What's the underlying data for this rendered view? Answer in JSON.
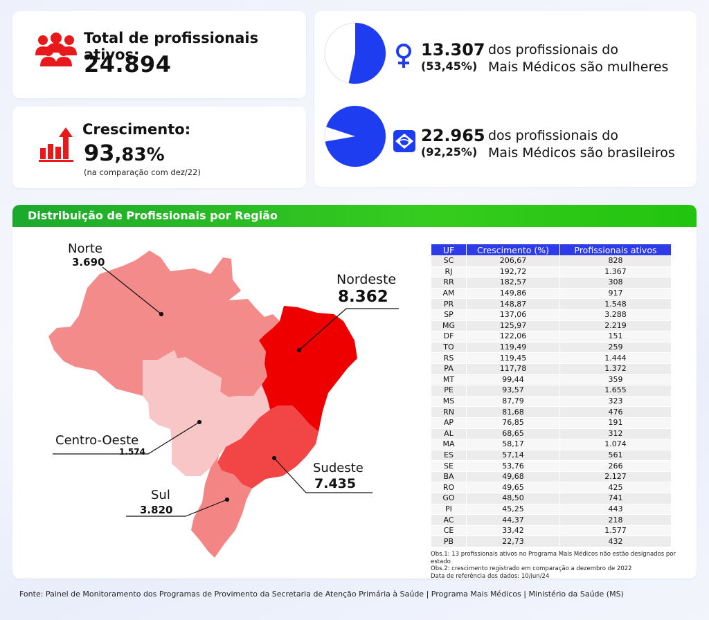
{
  "total": {
    "label": "Total de profissionais ativos:",
    "value": "24.894",
    "icon": "people-group-icon",
    "color": "#e8191b"
  },
  "growth": {
    "label": "Crescimento:",
    "value_main": "93",
    "value_decimal": ",83%",
    "note": "(na comparação com dez/22)",
    "icon": "growth-bar-chart-icon"
  },
  "women": {
    "number": "13.307",
    "pct": "(53,45%)",
    "line1": "dos profissionais do",
    "line2": "Mais Médicos são mulheres",
    "share": 0.5345,
    "icon": "female-symbol-icon"
  },
  "brazilians": {
    "number": "22.965",
    "pct": "(92,25%)",
    "line1": "dos profissionais do",
    "line2": "Mais Médicos são brasileiros",
    "share": 0.9225,
    "icon": "brazil-flag-icon"
  },
  "section_title": "Distribuição de Profissionais por Região",
  "regions": {
    "norte": {
      "name": "Norte",
      "value": "3.690",
      "color": "#f48b8b"
    },
    "nordeste": {
      "name": "Nordeste",
      "value": "8.362",
      "color": "#ef0000"
    },
    "centro_oeste": {
      "name": "Centro-Oeste",
      "value": "1.574",
      "color": "#f8c6c6"
    },
    "sudeste": {
      "name": "Sudeste",
      "value": "7.435",
      "color": "#f24545"
    },
    "sul": {
      "name": "Sul",
      "value": "3.820",
      "color": "#f48585"
    }
  },
  "table": {
    "headers": [
      "UF",
      "Crescimento (%)",
      "Profissionais ativos"
    ],
    "rows": [
      [
        "SC",
        "206,67",
        "828"
      ],
      [
        "RJ",
        "192,72",
        "1.367"
      ],
      [
        "RR",
        "182,57",
        "308"
      ],
      [
        "AM",
        "149,86",
        "917"
      ],
      [
        "PR",
        "148,87",
        "1.548"
      ],
      [
        "SP",
        "137,06",
        "3.288"
      ],
      [
        "MG",
        "125,97",
        "2.219"
      ],
      [
        "DF",
        "122,06",
        "151"
      ],
      [
        "TO",
        "119,49",
        "259"
      ],
      [
        "RS",
        "119,45",
        "1.444"
      ],
      [
        "PA",
        "117,78",
        "1.372"
      ],
      [
        "MT",
        "99,44",
        "359"
      ],
      [
        "PE",
        "93,57",
        "1.655"
      ],
      [
        "MS",
        "87,79",
        "323"
      ],
      [
        "RN",
        "81,68",
        "476"
      ],
      [
        "AP",
        "76,85",
        "191"
      ],
      [
        "AL",
        "68,65",
        "312"
      ],
      [
        "MA",
        "58,17",
        "1.074"
      ],
      [
        "ES",
        "57,14",
        "561"
      ],
      [
        "SE",
        "53,76",
        "266"
      ],
      [
        "BA",
        "49,68",
        "2.127"
      ],
      [
        "RO",
        "49,65",
        "425"
      ],
      [
        "GO",
        "48,50",
        "741"
      ],
      [
        "PI",
        "45,25",
        "443"
      ],
      [
        "AC",
        "44,37",
        "218"
      ],
      [
        "CE",
        "33,42",
        "1.577"
      ],
      [
        "PB",
        "22,73",
        "432"
      ]
    ]
  },
  "notes": [
    "Obs.1: 13 profissionais ativos no Programa Mais Médicos não estão designados por estado",
    "Obs.2: crescimento registrado em comparação a dezembro de 2022",
    "Data de referência dos dados: 10/jun/24"
  ],
  "footer": "Fonte: Painel de Monitoramento dos Programas de Provimento da Secretaria de Atenção Primária à Saúde  |  Programa Mais Médicos  |  Ministério da Saúde (MS)",
  "accent_blue": "#1f3df0"
}
